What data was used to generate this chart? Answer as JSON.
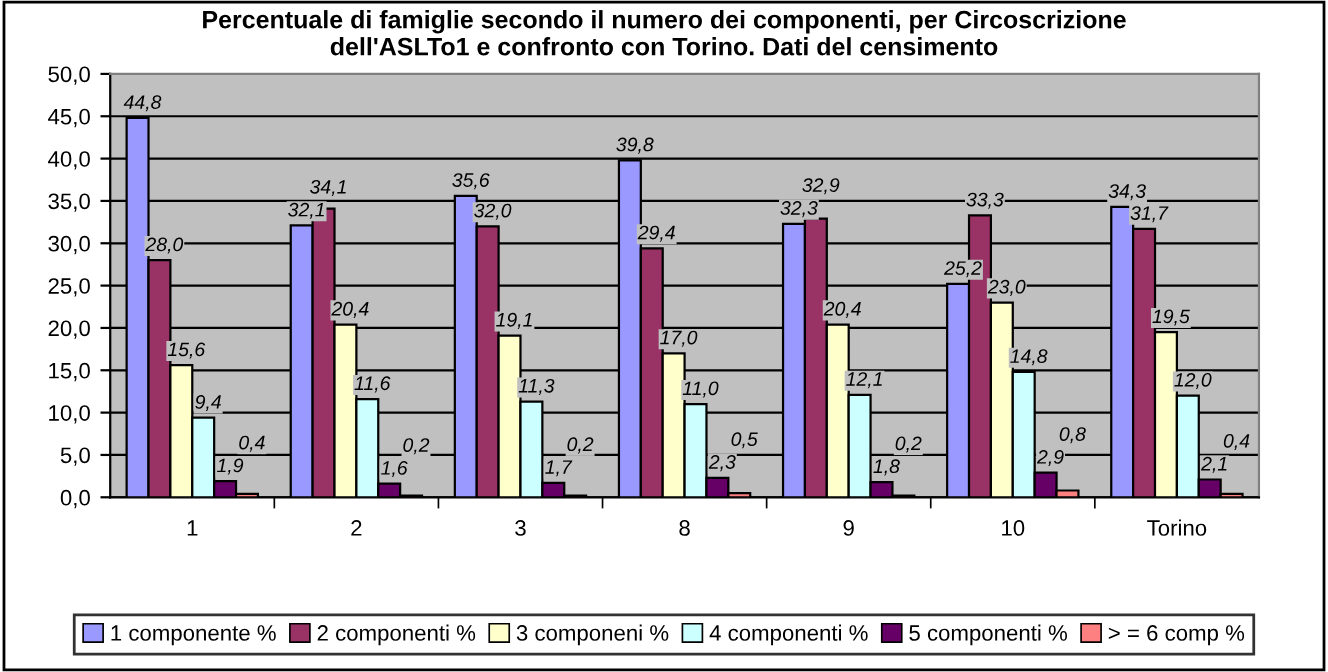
{
  "chart_data": {
    "type": "bar",
    "title": "Percentuale di famiglie secondo il numero dei componenti, per Circoscrizione\ndell'ASLTo1 e confronto con Torino. Dati del censimento",
    "categories": [
      "1",
      "2",
      "3",
      "8",
      "9",
      "10",
      "Torino"
    ],
    "series": [
      {
        "name": "1 componente %",
        "color": "#9999ff",
        "values": [
          44.8,
          32.1,
          35.6,
          39.8,
          32.3,
          25.2,
          34.3
        ],
        "value_labels": [
          "44,8",
          "32,1",
          "35,6",
          "39,8",
          "32,3",
          "25,2",
          "34,3"
        ]
      },
      {
        "name": "2 componenti %",
        "color": "#993366",
        "values": [
          28.0,
          34.1,
          32.0,
          29.4,
          32.9,
          33.3,
          31.7
        ],
        "value_labels": [
          "28,0",
          "34,1",
          "32,0",
          "29,4",
          "32,9",
          "33,3",
          "31,7"
        ]
      },
      {
        "name": "3 componeni %",
        "color": "#ffffcc",
        "values": [
          15.6,
          20.4,
          19.1,
          17.0,
          20.4,
          23.0,
          19.5
        ],
        "value_labels": [
          "15,6",
          "20,4",
          "19,1",
          "17,0",
          "20,4",
          "23,0",
          "19,5"
        ]
      },
      {
        "name": "4 componenti %",
        "color": "#ccffff",
        "values": [
          9.4,
          11.6,
          11.3,
          11.0,
          12.1,
          14.8,
          12.0
        ],
        "value_labels": [
          "9,4",
          "11,6",
          "11,3",
          "11,0",
          "12,1",
          "14,8",
          "12,0"
        ]
      },
      {
        "name": "5 componenti %",
        "color": "#660066",
        "values": [
          1.9,
          1.6,
          1.7,
          2.3,
          1.8,
          2.9,
          2.1
        ],
        "value_labels": [
          "1,9",
          "1,6",
          "1,7",
          "2,3",
          "1,8",
          "2,9",
          "2,1"
        ]
      },
      {
        "name": "> = 6 comp %",
        "color": "#ff8080",
        "values": [
          0.4,
          0.2,
          0.2,
          0.5,
          0.2,
          0.8,
          0.4
        ],
        "value_labels": [
          "0,4",
          "0,2",
          "0,2",
          "0,5",
          "0,2",
          "0,8",
          "0,4"
        ]
      }
    ],
    "ylim": [
      0,
      50
    ],
    "yticks": [
      {
        "value": 0,
        "label": "0,0"
      },
      {
        "value": 5,
        "label": "5,0"
      },
      {
        "value": 10,
        "label": "10,0"
      },
      {
        "value": 15,
        "label": "15,0"
      },
      {
        "value": 20,
        "label": "20,0"
      },
      {
        "value": 25,
        "label": "25,0"
      },
      {
        "value": 30,
        "label": "30,0"
      },
      {
        "value": 35,
        "label": "35,0"
      },
      {
        "value": 40,
        "label": "40,0"
      },
      {
        "value": 45,
        "label": "45,0"
      },
      {
        "value": 50,
        "label": "50,0"
      }
    ],
    "grid": "y",
    "legend": "bottom"
  }
}
